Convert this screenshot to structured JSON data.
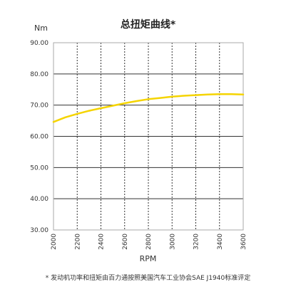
{
  "chart_data": {
    "type": "line",
    "title": "总扭矩曲线*",
    "ylabel": "Nm",
    "xlabel": "RPM",
    "xlim": [
      2000,
      3600
    ],
    "ylim": [
      30,
      90
    ],
    "x_ticks": [
      "2000",
      "2200",
      "2400",
      "2600",
      "2800",
      "3000",
      "3200",
      "3400",
      "3600"
    ],
    "y_ticks": [
      "90.00",
      "80.00",
      "70.00",
      "60.00",
      "50.00",
      "40.00",
      "30.00"
    ],
    "grid": true,
    "series": [
      {
        "x": [
          2000,
          2100,
          2200,
          2300,
          2400,
          2500,
          2600,
          2700,
          2800,
          2900,
          3000,
          3100,
          3200,
          3300,
          3400,
          3500,
          3600
        ],
        "values": [
          64.6,
          66.1,
          67.2,
          68.2,
          69.0,
          69.8,
          70.6,
          71.3,
          71.9,
          72.3,
          72.7,
          73.0,
          73.2,
          73.4,
          73.5,
          73.5,
          73.4
        ],
        "color": "#f5d400"
      }
    ],
    "footnote": "* 发动机功率和扭矩由百力通按照美国汽车工业协会SAE J1940标准评定"
  },
  "colors": {
    "line": "#f5d400",
    "grid_major": "#333333",
    "grid_minor": "#aaaaaa"
  }
}
